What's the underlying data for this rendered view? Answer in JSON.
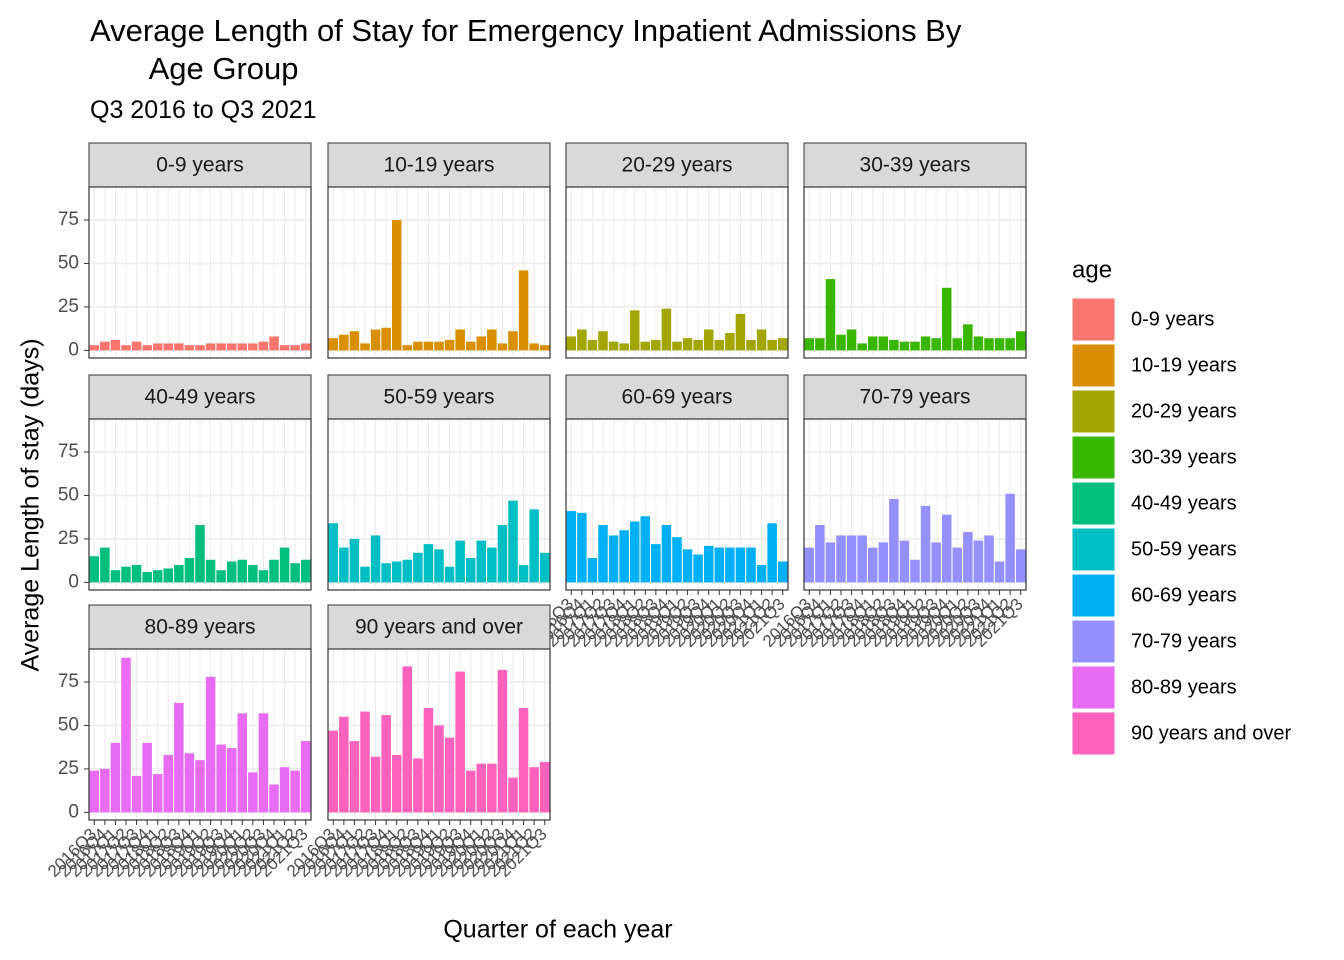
{
  "chart_data": {
    "type": "bar",
    "title": "Average Length of Stay for Emergency Inpatient Admissions By\n       Age Group",
    "subtitle": "Q3 2016 to Q3 2021",
    "x_label": "Quarter of each year",
    "y_label": "Average Length of stay (days)",
    "legend_title": "age",
    "legend_position": "right",
    "grid": true,
    "categories": [
      "2016Q3",
      "2016Q4",
      "2017Q1",
      "2017Q2",
      "2017Q3",
      "2017Q4",
      "2018Q1",
      "2018Q2",
      "2018Q3",
      "2018Q4",
      "2019Q1",
      "2019Q2",
      "2019Q3",
      "2019Q4",
      "2020Q1",
      "2020Q2",
      "2020Q3",
      "2020Q4",
      "2021Q1",
      "2021Q2",
      "2021Q3"
    ],
    "ylim": [
      -4.4,
      94
    ],
    "yticks": [
      0,
      25,
      50,
      75
    ],
    "series": [
      {
        "name": "0-9 years",
        "color": "#F8766D",
        "values": [
          3,
          5,
          6,
          3,
          5,
          3,
          4,
          4,
          4,
          3,
          3,
          4,
          4,
          4,
          4,
          4,
          5,
          8,
          3,
          3,
          4
        ]
      },
      {
        "name": "10-19 years",
        "color": "#D89000",
        "values": [
          7,
          9,
          11,
          4,
          12,
          13,
          75,
          3,
          5,
          5,
          5,
          6,
          12,
          5,
          8,
          12,
          4,
          11,
          46,
          4,
          3
        ]
      },
      {
        "name": "20-29 years",
        "color": "#A3A500",
        "values": [
          8,
          12,
          6,
          11,
          5,
          4,
          23,
          5,
          6,
          24,
          5,
          7,
          6,
          12,
          6,
          10,
          21,
          6,
          12,
          6,
          7
        ]
      },
      {
        "name": "30-39 years",
        "color": "#39B600",
        "values": [
          7,
          7,
          41,
          9,
          12,
          4,
          8,
          8,
          6,
          5,
          5,
          8,
          7,
          36,
          7,
          15,
          8,
          7,
          7,
          7,
          11
        ]
      },
      {
        "name": "40-49 years",
        "color": "#00BF7D",
        "values": [
          15,
          20,
          7,
          9,
          10,
          6,
          7,
          8,
          10,
          14,
          33,
          13,
          7,
          12,
          13,
          10,
          7,
          13,
          20,
          11,
          13
        ]
      },
      {
        "name": "50-59 years",
        "color": "#00BFC4",
        "values": [
          34,
          20,
          25,
          9,
          27,
          11,
          12,
          13,
          17,
          22,
          19,
          9,
          24,
          14,
          24,
          20,
          33,
          47,
          10,
          42,
          17
        ]
      },
      {
        "name": "60-69 years",
        "color": "#00B0F6",
        "values": [
          41,
          40,
          14,
          33,
          27,
          30,
          35,
          38,
          22,
          33,
          26,
          19,
          16,
          21,
          20,
          20,
          20,
          20,
          10,
          34,
          12
        ]
      },
      {
        "name": "70-79 years",
        "color": "#9590FF",
        "values": [
          20,
          33,
          23,
          27,
          27,
          27,
          20,
          23,
          48,
          24,
          13,
          44,
          23,
          39,
          20,
          29,
          24,
          27,
          12,
          51,
          19
        ]
      },
      {
        "name": "80-89 years",
        "color": "#E76BF3",
        "values": [
          24,
          25,
          40,
          89,
          21,
          40,
          22,
          33,
          63,
          34,
          30,
          78,
          39,
          37,
          57,
          23,
          57,
          16,
          26,
          24,
          41
        ]
      },
      {
        "name": "90 years and over",
        "color": "#FF62BC",
        "values": [
          47,
          55,
          41,
          58,
          32,
          56,
          33,
          84,
          31,
          60,
          50,
          43,
          81,
          24,
          28,
          28,
          82,
          20,
          60,
          26,
          29
        ]
      }
    ]
  }
}
